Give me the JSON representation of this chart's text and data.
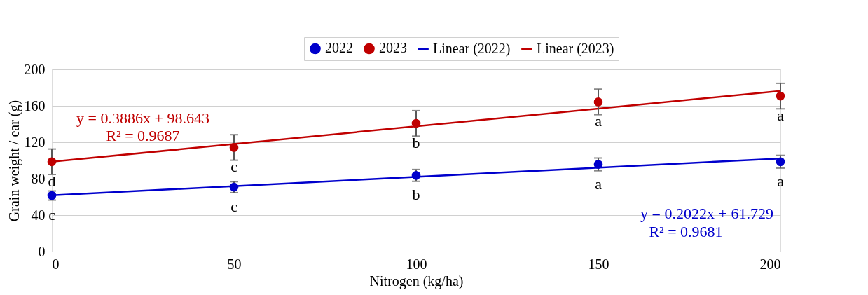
{
  "chart_data": {
    "type": "scatter",
    "xlabel": "Nitrogen (kg/ha)",
    "ylabel": "Grain weight / ear (g)",
    "xlim": [
      0,
      200
    ],
    "xticks": [
      0,
      50,
      100,
      150,
      200
    ],
    "ylim": [
      0,
      200
    ],
    "yticks": [
      0,
      40,
      80,
      120,
      160,
      200
    ],
    "grid": "y",
    "legend": "top right",
    "series": [
      {
        "name": "2022",
        "color": "#0000cc",
        "marker": "circle",
        "x": [
          0,
          50,
          100,
          150,
          200
        ],
        "values": [
          61.5,
          70.7,
          83.6,
          95.7,
          98.6
        ],
        "errors": [
          5,
          6,
          6.5,
          7,
          7
        ]
      },
      {
        "name": "2023",
        "color": "#c00000",
        "marker": "circle",
        "x": [
          0,
          50,
          100,
          150,
          200
        ],
        "values": [
          98.6,
          114.3,
          140.7,
          164.3,
          170.7
        ],
        "errors": [
          14,
          14,
          14,
          14,
          14
        ]
      },
      {
        "name": "Linear (2022)",
        "type": "line",
        "marker": "none",
        "color": "#0000cc",
        "x": [
          0,
          200
        ],
        "values": [
          61.7,
          102.2
        ]
      },
      {
        "name": "Linear (2023)",
        "type": "line",
        "marker": "none",
        "color": "#c00000",
        "x": [
          0,
          200
        ],
        "values": [
          98.6,
          176.4
        ]
      }
    ],
    "annotations": [
      {
        "text": "c",
        "x": 0,
        "y": 61.5
      },
      {
        "text": "c",
        "x": 50,
        "y": 70.7
      },
      {
        "text": "b",
        "x": 100,
        "y": 83.6
      },
      {
        "text": "a",
        "x": 150,
        "y": 95.7
      },
      {
        "text": "a",
        "x": 200,
        "y": 98.6
      },
      {
        "text": "d",
        "x": 0,
        "y": 98.6
      },
      {
        "text": "c",
        "x": 50,
        "y": 114.3
      },
      {
        "text": "b",
        "x": 100,
        "y": 140.7
      },
      {
        "text": "a",
        "x": 150,
        "y": 164.3
      },
      {
        "text": "a",
        "x": 200,
        "y": 170.7
      },
      {
        "text": "y = 0.3886x + 98.643",
        "x": 25,
        "y": 108.4
      },
      {
        "text": "R² = 0.9687",
        "x": 25,
        "y": 108.4
      },
      "y = 0.2022x + 61.729",
      "R² = 0.9681"
    ]
  }
}
